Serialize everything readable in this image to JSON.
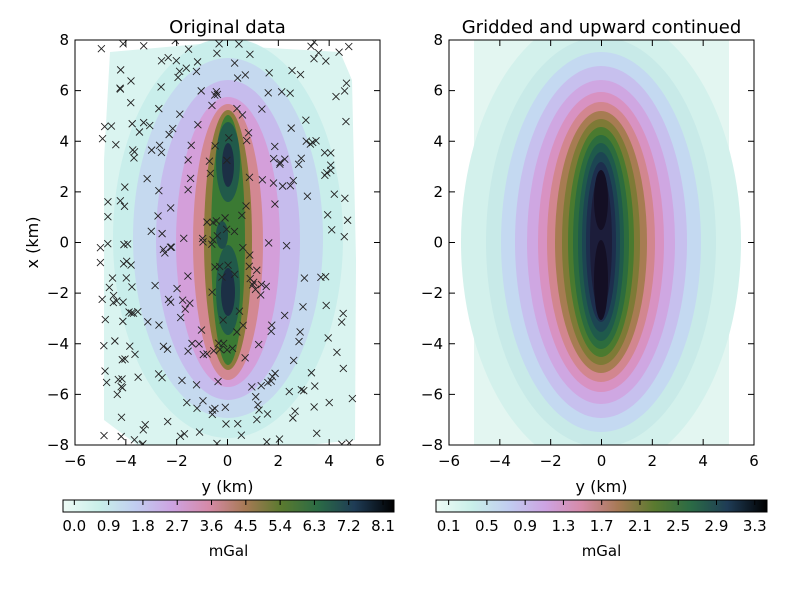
{
  "figure": {
    "background": "#ffffff"
  },
  "chart_data": [
    {
      "type": "heatmap",
      "title": "Original data",
      "xlabel": "y (km)",
      "ylabel": "x (km)",
      "xlim": [
        -6,
        6
      ],
      "ylim": [
        -8,
        8
      ],
      "xticks": [
        -6,
        -4,
        -2,
        0,
        2,
        4,
        6
      ],
      "yticks": [
        -8,
        -6,
        -4,
        -2,
        0,
        2,
        4,
        6,
        8
      ],
      "colormap": "cubehelix_r",
      "value_range": [
        0.0,
        8.1
      ],
      "colorbar": {
        "label": "mGal",
        "ticks": [
          "0.0",
          "0.9",
          "1.8",
          "2.7",
          "3.6",
          "4.5",
          "5.4",
          "6.3",
          "7.2",
          "8.1"
        ]
      },
      "data_extent": {
        "y": [
          -5,
          5
        ],
        "x": [
          -8,
          8
        ]
      },
      "anomalies": [
        {
          "name": "",
          "y": 0.0,
          "x": 2.5,
          "peak": 8.1
        },
        {
          "name": "",
          "y": 0.0,
          "x": -2.5,
          "peak": 7.5
        }
      ],
      "grid": false,
      "observation_marker": "x"
    },
    {
      "type": "heatmap",
      "title": "Gridded and upward continued",
      "xlabel": "y (km)",
      "ylabel": "",
      "xlim": [
        -6,
        6
      ],
      "ylim": [
        -8,
        8
      ],
      "xticks": [
        -6,
        -4,
        -2,
        0,
        2,
        4,
        6
      ],
      "yticks": [
        -8,
        -6,
        -4,
        -2,
        0,
        2,
        4,
        6,
        8
      ],
      "colormap": "cubehelix_r",
      "value_range": [
        0.1,
        3.3
      ],
      "colorbar": {
        "label": "mGal",
        "ticks": [
          "0.1",
          "0.5",
          "0.9",
          "1.3",
          "1.7",
          "2.1",
          "2.5",
          "2.9",
          "3.3"
        ]
      },
      "data_extent": {
        "y": [
          -5,
          5
        ],
        "x": [
          -8,
          8
        ]
      },
      "grid": false
    }
  ]
}
